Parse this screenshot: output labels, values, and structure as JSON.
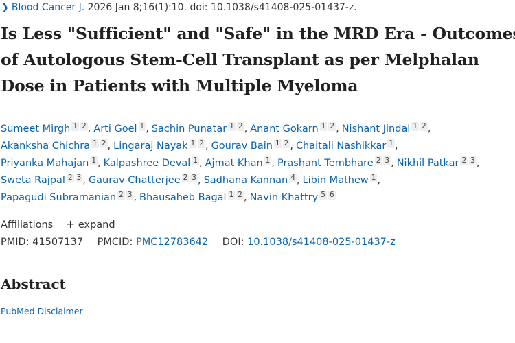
{
  "citation": {
    "journal": "Blood Cancer J.",
    "details": " 2026 Jan 8;16(1):10. doi: 10.1038/s41408-025-01437-z."
  },
  "title": "Is Less \"Sufficient\" and \"Safe\" in the MRD Era - Outcomes of Autologous Stem-Cell Transplant as per Melphalan Dose in Patients with Multiple Myeloma",
  "authors": [
    {
      "name": "Sumeet Mirgh",
      "affs": [
        "1",
        "2"
      ]
    },
    {
      "name": "Arti Goel",
      "affs": [
        "1"
      ]
    },
    {
      "name": "Sachin Punatar",
      "affs": [
        "1",
        "2"
      ]
    },
    {
      "name": "Anant Gokarn",
      "affs": [
        "1",
        "2"
      ]
    },
    {
      "name": "Nishant Jindal",
      "affs": [
        "1",
        "2"
      ]
    },
    {
      "name": "Akanksha Chichra",
      "affs": [
        "1",
        "2"
      ]
    },
    {
      "name": "Lingaraj Nayak",
      "affs": [
        "1",
        "2"
      ]
    },
    {
      "name": "Gourav Bain",
      "affs": [
        "1",
        "2"
      ]
    },
    {
      "name": "Chaitali Nashikkar",
      "affs": [
        "1"
      ]
    },
    {
      "name": "Priyanka Mahajan",
      "affs": [
        "1"
      ]
    },
    {
      "name": "Kalpashree Deval",
      "affs": [
        "1"
      ]
    },
    {
      "name": "Ajmat Khan",
      "affs": [
        "1"
      ]
    },
    {
      "name": "Prashant Tembhare",
      "affs": [
        "2",
        "3"
      ]
    },
    {
      "name": "Nikhil Patkar",
      "affs": [
        "2",
        "3"
      ]
    },
    {
      "name": "Sweta Rajpal",
      "affs": [
        "2",
        "3"
      ]
    },
    {
      "name": "Gaurav Chatterjee",
      "affs": [
        "2",
        "3"
      ]
    },
    {
      "name": "Sadhana Kannan",
      "affs": [
        "4"
      ]
    },
    {
      "name": "Libin Mathew",
      "affs": [
        "1"
      ]
    },
    {
      "name": "Papagudi Subramanian",
      "affs": [
        "2",
        "3"
      ]
    },
    {
      "name": "Bhausaheb Bagal",
      "affs": [
        "1",
        "2"
      ]
    },
    {
      "name": "Navin Khattry",
      "affs": [
        "5",
        "6"
      ]
    }
  ],
  "author_line_breaks_after": [
    4,
    8,
    13,
    17
  ],
  "affiliations": {
    "label": "Affiliations",
    "expand_icon": "plus-icon",
    "expand": "expand"
  },
  "ids": {
    "pmid_label": "PMID:",
    "pmid": "41507137",
    "pmcid_label": "PMCID:",
    "pmcid": "PMC12783642",
    "doi_label": "DOI:",
    "doi": "10.1038/s41408-025-01437-z"
  },
  "abstract_heading": "Abstract",
  "disclaimer": "PubMed Disclaimer",
  "colors": {
    "link": "#0b63ad",
    "text": "#212121"
  }
}
